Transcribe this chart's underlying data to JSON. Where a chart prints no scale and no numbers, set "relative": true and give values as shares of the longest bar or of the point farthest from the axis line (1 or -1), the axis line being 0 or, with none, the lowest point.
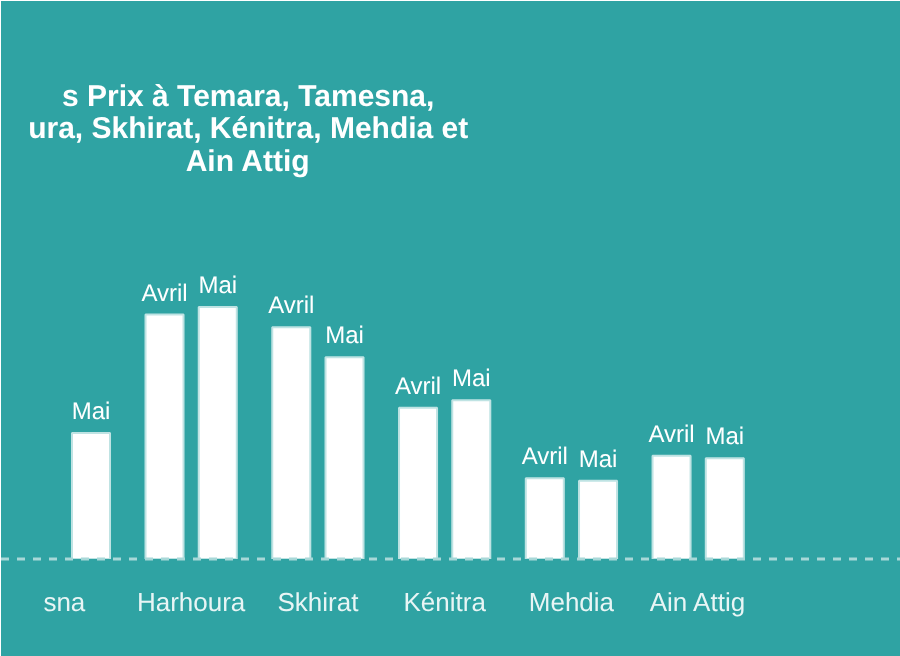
{
  "chart_data": {
    "type": "bar",
    "title": "s Prix à Temara, Tamesna,\nura, Skhirat, Kénitra, Mehdia et\nAin Attig",
    "relative": true,
    "grid": false,
    "categories": [
      "sna",
      "Harhoura",
      "Skhirat",
      "Kénitra",
      "Mehdia",
      "Ain Attig"
    ],
    "series": [
      {
        "name": "Avril",
        "color": "#ffffff",
        "values": [
          null,
          0.97,
          0.92,
          0.6,
          0.32,
          0.41
        ]
      },
      {
        "name": "Mai",
        "color": "#ffffff",
        "values": [
          0.5,
          1,
          0.8,
          0.63,
          0.31,
          0.4
        ]
      }
    ]
  }
}
